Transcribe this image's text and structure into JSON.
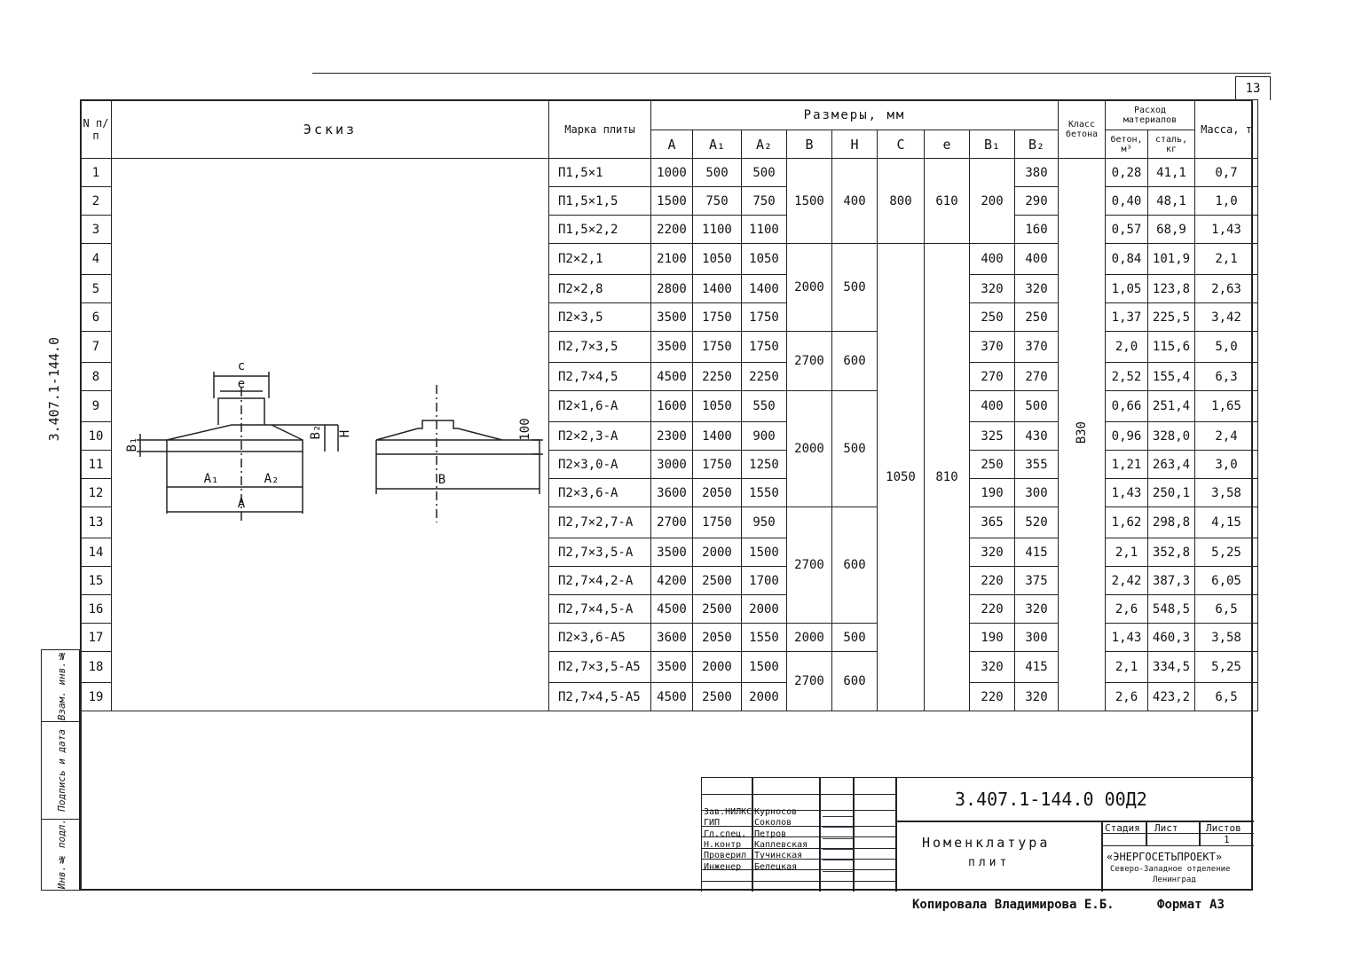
{
  "page_number": "13",
  "doc_number_side": "3.407.1-144.0",
  "margin_labels": [
    "Взам. инв.№",
    "Подпись и дата",
    "Инв.№ подл."
  ],
  "header": {
    "n": "N п/п",
    "sketch": "Эскиз",
    "mark": "Марка плиты",
    "dims": "Размеры, мм",
    "cols": [
      "A",
      "A₁",
      "A₂",
      "B",
      "H",
      "C",
      "e",
      "B₁",
      "B₂"
    ],
    "class": "Класс бетона",
    "materials": "Расход материалов",
    "concrete": "бетон, м³",
    "steel": "сталь, кг",
    "mass": "Масса, т"
  },
  "sketch_labels": {
    "c": "c",
    "e": "e",
    "b1": "B₁",
    "b2": "B₂",
    "h": "H",
    "a1": "A₁",
    "a2": "A₂",
    "a": "A",
    "b": "B",
    "h100": "100"
  },
  "rows": [
    {
      "n": "1",
      "mark": "П1,5×1",
      "A": "1000",
      "A1": "500",
      "A2": "500",
      "B2": "380",
      "concrete": "0,28",
      "steel": "41,1",
      "mass": "0,7"
    },
    {
      "n": "2",
      "mark": "П1,5×1,5",
      "A": "1500",
      "A1": "750",
      "A2": "750",
      "B2": "290",
      "concrete": "0,40",
      "steel": "48,1",
      "mass": "1,0"
    },
    {
      "n": "3",
      "mark": "П1,5×2,2",
      "A": "2200",
      "A1": "1100",
      "A2": "1100",
      "B2": "160",
      "concrete": "0,57",
      "steel": "68,9",
      "mass": "1,43"
    },
    {
      "n": "4",
      "mark": "П2×2,1",
      "A": "2100",
      "A1": "1050",
      "A2": "1050",
      "B1": "400",
      "B2": "400",
      "concrete": "0,84",
      "steel": "101,9",
      "mass": "2,1"
    },
    {
      "n": "5",
      "mark": "П2×2,8",
      "A": "2800",
      "A1": "1400",
      "A2": "1400",
      "B1": "320",
      "B2": "320",
      "concrete": "1,05",
      "steel": "123,8",
      "mass": "2,63"
    },
    {
      "n": "6",
      "mark": "П2×3,5",
      "A": "3500",
      "A1": "1750",
      "A2": "1750",
      "B1": "250",
      "B2": "250",
      "concrete": "1,37",
      "steel": "225,5",
      "mass": "3,42"
    },
    {
      "n": "7",
      "mark": "П2,7×3,5",
      "A": "3500",
      "A1": "1750",
      "A2": "1750",
      "B1": "370",
      "B2": "370",
      "concrete": "2,0",
      "steel": "115,6",
      "mass": "5,0"
    },
    {
      "n": "8",
      "mark": "П2,7×4,5",
      "A": "4500",
      "A1": "2250",
      "A2": "2250",
      "B1": "270",
      "B2": "270",
      "concrete": "2,52",
      "steel": "155,4",
      "mass": "6,3"
    },
    {
      "n": "9",
      "mark": "П2×1,6-А",
      "A": "1600",
      "A1": "1050",
      "A2": "550",
      "B1": "400",
      "B2": "500",
      "concrete": "0,66",
      "steel": "251,4",
      "mass": "1,65"
    },
    {
      "n": "10",
      "mark": "П2×2,3-А",
      "A": "2300",
      "A1": "1400",
      "A2": "900",
      "B1": "325",
      "B2": "430",
      "concrete": "0,96",
      "steel": "328,0",
      "mass": "2,4"
    },
    {
      "n": "11",
      "mark": "П2×3,0-А",
      "A": "3000",
      "A1": "1750",
      "A2": "1250",
      "B1": "250",
      "B2": "355",
      "concrete": "1,21",
      "steel": "263,4",
      "mass": "3,0"
    },
    {
      "n": "12",
      "mark": "П2×3,6-А",
      "A": "3600",
      "A1": "2050",
      "A2": "1550",
      "B1": "190",
      "B2": "300",
      "concrete": "1,43",
      "steel": "250,1",
      "mass": "3,58"
    },
    {
      "n": "13",
      "mark": "П2,7×2,7-А",
      "A": "2700",
      "A1": "1750",
      "A2": "950",
      "B1": "365",
      "B2": "520",
      "concrete": "1,62",
      "steel": "298,8",
      "mass": "4,15"
    },
    {
      "n": "14",
      "mark": "П2,7×3,5-А",
      "A": "3500",
      "A1": "2000",
      "A2": "1500",
      "B1": "320",
      "B2": "415",
      "concrete": "2,1",
      "steel": "352,8",
      "mass": "5,25"
    },
    {
      "n": "15",
      "mark": "П2,7×4,2-А",
      "A": "4200",
      "A1": "2500",
      "A2": "1700",
      "B1": "220",
      "B2": "375",
      "concrete": "2,42",
      "steel": "387,3",
      "mass": "6,05"
    },
    {
      "n": "16",
      "mark": "П2,7×4,5-А",
      "A": "4500",
      "A1": "2500",
      "A2": "2000",
      "B1": "220",
      "B2": "320",
      "concrete": "2,6",
      "steel": "548,5",
      "mass": "6,5"
    },
    {
      "n": "17",
      "mark": "П2×3,6-А5",
      "A": "3600",
      "A1": "2050",
      "A2": "1550",
      "B1": "190",
      "B2": "300",
      "concrete": "1,43",
      "steel": "460,3",
      "mass": "3,58"
    },
    {
      "n": "18",
      "mark": "П2,7×3,5-А5",
      "A": "3500",
      "A1": "2000",
      "A2": "1500",
      "B1": "320",
      "B2": "415",
      "concrete": "2,1",
      "steel": "334,5",
      "mass": "5,25"
    },
    {
      "n": "19",
      "mark": "П2,7×4,5-А5",
      "A": "4500",
      "A1": "2500",
      "A2": "2000",
      "B1": "220",
      "B2": "320",
      "concrete": "2,6",
      "steel": "423,2",
      "mass": "6,5"
    }
  ],
  "bh_groups": [
    {
      "from": 1,
      "to": 3,
      "B": "1500",
      "H": "400"
    },
    {
      "from": 4,
      "to": 6,
      "B": "2000",
      "H": "500"
    },
    {
      "from": 7,
      "to": 8,
      "B": "2700",
      "H": "600"
    },
    {
      "from": 9,
      "to": 12,
      "B": "2000",
      "H": "500"
    },
    {
      "from": 13,
      "to": 16,
      "B": "2700",
      "H": "600"
    },
    {
      "from": 17,
      "to": 17,
      "B": "2000",
      "H": "500"
    },
    {
      "from": 18,
      "to": 19,
      "B": "2700",
      "H": "600"
    }
  ],
  "ce_groups": [
    {
      "from": 1,
      "to": 3,
      "C": "800",
      "e": "610"
    },
    {
      "from": 4,
      "to": 19,
      "C": "1050",
      "e": "810"
    }
  ],
  "b1_group": {
    "from": 1,
    "to": 3,
    "B1": "200"
  },
  "concrete_class": "В30",
  "title_block": {
    "doc_code": "3.407.1-144.0  00Д2",
    "title_line1": "Номенклатура",
    "title_line2": "плит",
    "stage_label": "Стадия",
    "sheet_label": "Лист",
    "sheets_label": "Листов",
    "sheets_value": "1",
    "org": "«ЭНЕРГОСЕТЬПРОЕКТ»",
    "org_branch": "Северо-Западное отделение",
    "org_city": "Ленинград",
    "staff": [
      {
        "role": "Зав.НИЛКС",
        "name": "Курносов"
      },
      {
        "role": "ГИП",
        "name": "Соколов"
      },
      {
        "role": "Гл.спец.",
        "name": "Петров"
      },
      {
        "role": "Н.контр",
        "name": "Каплевская"
      },
      {
        "role": "Проверил",
        "name": "Тучинская"
      },
      {
        "role": "Инженер",
        "name": "Белецкая"
      }
    ]
  },
  "footer": {
    "copied": "Копировала Владимирова Е.Б.",
    "format": "Формат А3"
  }
}
